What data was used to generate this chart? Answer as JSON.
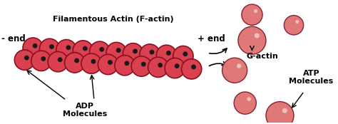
{
  "background_color": "#ffffff",
  "filament_color": "#d94050",
  "filament_border": "#8b1020",
  "dot_color": "#1a1a1a",
  "g_actin_color": "#e07878",
  "g_actin_border": "#8b2030",
  "g_actin_dot_color": "#f0c0c0",
  "text_color": "#000000",
  "title": "Filamentous Actin (F-actin)",
  "minus_end": "- end",
  "plus_end": "+ end",
  "adp_label": "ADP\nMolecules",
  "atp_label": "ATP\nMolecules",
  "g_actin_label": "G-actin",
  "figsize": [
    4.74,
    1.74
  ],
  "dpi": 100
}
